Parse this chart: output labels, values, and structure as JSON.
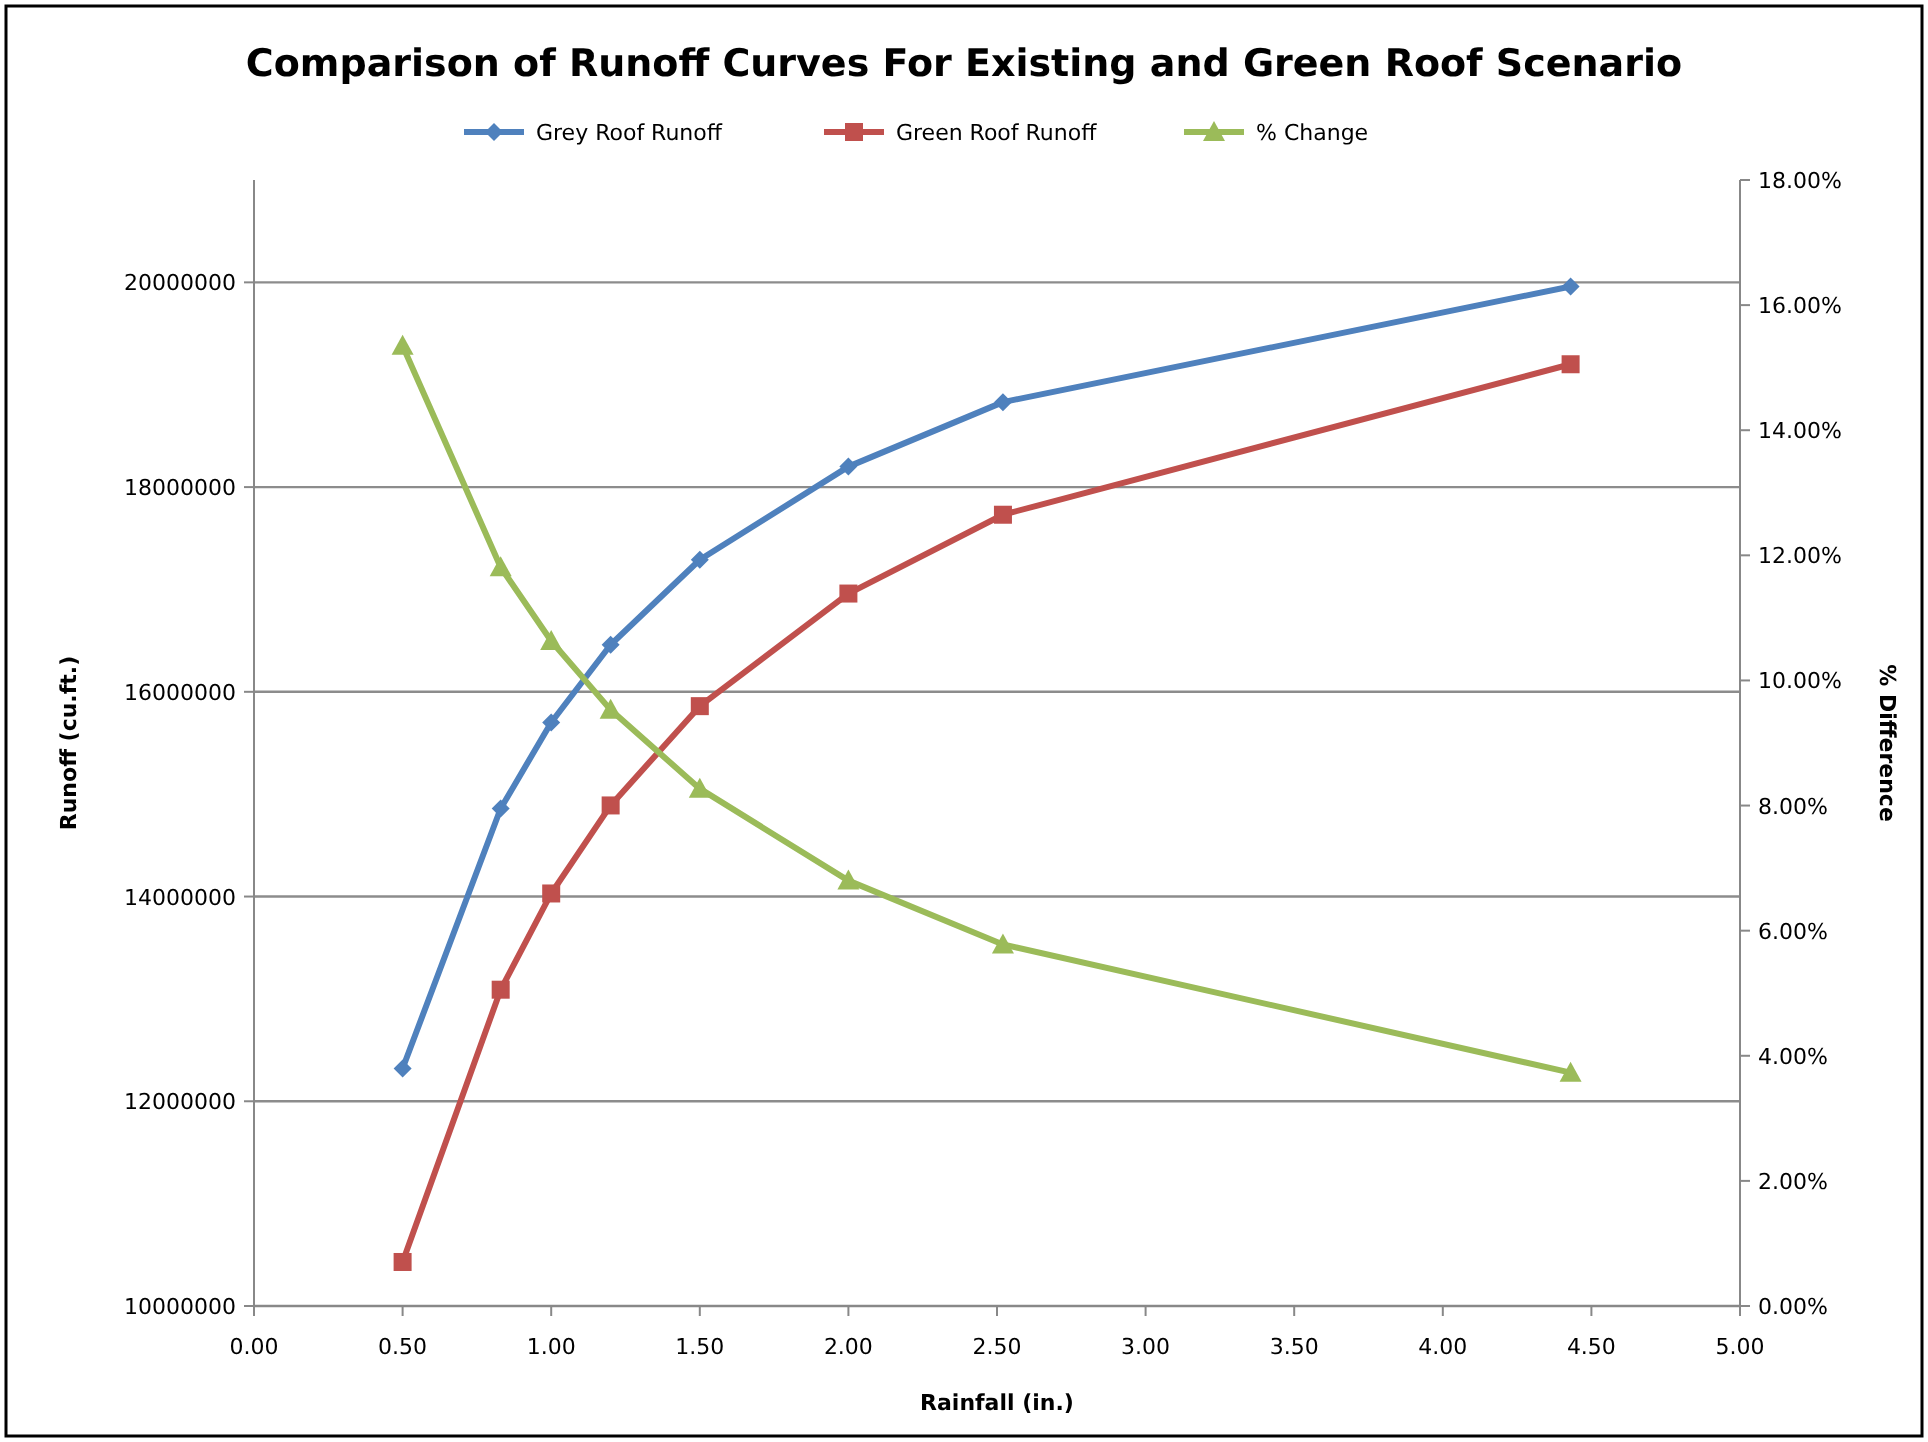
{
  "chart_data": {
    "type": "line",
    "title": "Comparison of Runoff Curves For Existing and Green Roof Scenario",
    "xlabel": "Rainfall (in.)",
    "ylabel": "Runoff (cu.ft.)",
    "y2label": "% Difference",
    "x": [
      0.5,
      0.83,
      1.0,
      1.2,
      1.5,
      2.0,
      2.52,
      4.43
    ],
    "series": [
      {
        "name": "Grey Roof Runoff",
        "color": "#4f81bd",
        "marker": "diamond",
        "values": [
          12320000,
          14860000,
          15700000,
          16460000,
          17290000,
          18200000,
          18830000,
          19960000
        ]
      },
      {
        "name": "Green Roof Runoff",
        "color": "#c0504d",
        "marker": "square",
        "values": [
          10430000,
          13090000,
          14030000,
          14890000,
          15860000,
          16960000,
          17730000,
          19200000
        ]
      },
      {
        "name": "% Change",
        "color": "#9bbb59",
        "marker": "triangle",
        "axis": "y2",
        "values": [
          15.35,
          11.81,
          10.63,
          9.53,
          8.27,
          6.8,
          5.78,
          3.73
        ]
      }
    ],
    "xlim": [
      0,
      5
    ],
    "xticks": [
      {
        "value": 0,
        "label": "0.00"
      },
      {
        "value": 0.5,
        "label": "0.50"
      },
      {
        "value": 1,
        "label": "1.00"
      },
      {
        "value": 1.5,
        "label": "1.50"
      },
      {
        "value": 2,
        "label": "2.00"
      },
      {
        "value": 2.5,
        "label": "2.50"
      },
      {
        "value": 3,
        "label": "3.00"
      },
      {
        "value": 3.5,
        "label": "3.50"
      },
      {
        "value": 4,
        "label": "4.00"
      },
      {
        "value": 4.5,
        "label": "4.50"
      },
      {
        "value": 5,
        "label": "5.00"
      }
    ],
    "ylim": [
      10000000,
      21000000
    ],
    "yticks": [
      10000000,
      12000000,
      14000000,
      16000000,
      18000000,
      20000000
    ],
    "y2lim": [
      0,
      18
    ],
    "y2ticks": [
      {
        "value": 0,
        "label": "0.00%"
      },
      {
        "value": 2,
        "label": "2.00%"
      },
      {
        "value": 4,
        "label": "4.00%"
      },
      {
        "value": 6,
        "label": "6.00%"
      },
      {
        "value": 8,
        "label": "8.00%"
      },
      {
        "value": 10,
        "label": "10.00%"
      },
      {
        "value": 12,
        "label": "12.00%"
      },
      {
        "value": 14,
        "label": "14.00%"
      },
      {
        "value": 16,
        "label": "16.00%"
      },
      {
        "value": 18,
        "label": "18.00%"
      }
    ],
    "grid": "y",
    "legend": "top"
  }
}
